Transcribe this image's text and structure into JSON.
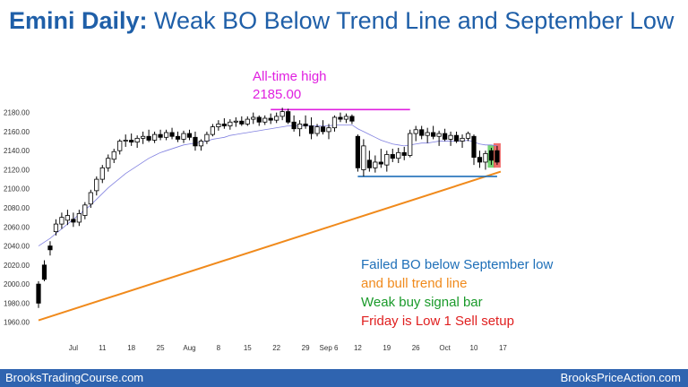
{
  "title": {
    "prefix": "Emini Daily:",
    "rest": " Weak BO Below Trend Line and September Low"
  },
  "footer": {
    "left": "BrooksTradingCourse.com",
    "right": "BrooksPriceAction.com"
  },
  "annotations": {
    "ath_label": "All-time high",
    "ath_value": "2185.00",
    "line1": "Failed BO below September low",
    "line2": "and bull trend line",
    "line3": "Weak buy signal bar",
    "line4": "Friday is Low 1 Sell setup"
  },
  "colors": {
    "title": "#1f5fa8",
    "footer": "#2f64b0",
    "ath": "#e020e0",
    "blue": "#1e6fb8",
    "orange": "#f08a1c",
    "green": "#1a9a2a",
    "red": "#e02020",
    "ma": "#8080e0",
    "signal_green": "#5ccc5c",
    "signal_red": "#ee5555"
  },
  "chart_data": {
    "type": "candlestick",
    "yticks": [
      "1960.00",
      "1980.00",
      "2000.00",
      "2020.00",
      "2040.00",
      "2060.00",
      "2080.00",
      "2100.00",
      "2120.00",
      "2140.00",
      "2160.00",
      "2180.00"
    ],
    "ylim": [
      1955,
      2190
    ],
    "xticks": [
      "Jul",
      "11",
      "18",
      "25",
      "Aug",
      "8",
      "15",
      "22",
      "29",
      "Sep 6",
      "12",
      "19",
      "26",
      "Oct",
      "10",
      "17"
    ],
    "xtick_index": [
      6,
      11,
      16,
      21,
      26,
      31,
      36,
      41,
      46,
      50,
      55,
      60,
      65,
      70,
      75,
      80
    ],
    "bars": [
      {
        "o": 2000,
        "h": 2003,
        "l": 1975,
        "c": 1980
      },
      {
        "o": 2020,
        "h": 2025,
        "l": 2003,
        "c": 2005
      },
      {
        "o": 2040,
        "h": 2045,
        "l": 2030,
        "c": 2036
      },
      {
        "o": 2055,
        "h": 2068,
        "l": 2051,
        "c": 2063
      },
      {
        "o": 2063,
        "h": 2075,
        "l": 2058,
        "c": 2070
      },
      {
        "o": 2067,
        "h": 2078,
        "l": 2062,
        "c": 2072
      },
      {
        "o": 2068,
        "h": 2075,
        "l": 2060,
        "c": 2065
      },
      {
        "o": 2065,
        "h": 2078,
        "l": 2061,
        "c": 2074
      },
      {
        "o": 2072,
        "h": 2086,
        "l": 2068,
        "c": 2083
      },
      {
        "o": 2084,
        "h": 2099,
        "l": 2080,
        "c": 2096
      },
      {
        "o": 2098,
        "h": 2113,
        "l": 2093,
        "c": 2110
      },
      {
        "o": 2110,
        "h": 2125,
        "l": 2106,
        "c": 2122
      },
      {
        "o": 2122,
        "h": 2136,
        "l": 2118,
        "c": 2132
      },
      {
        "o": 2131,
        "h": 2142,
        "l": 2127,
        "c": 2139
      },
      {
        "o": 2140,
        "h": 2152,
        "l": 2136,
        "c": 2150
      },
      {
        "o": 2150,
        "h": 2157,
        "l": 2144,
        "c": 2151
      },
      {
        "o": 2151,
        "h": 2158,
        "l": 2145,
        "c": 2149
      },
      {
        "o": 2149,
        "h": 2156,
        "l": 2143,
        "c": 2153
      },
      {
        "o": 2153,
        "h": 2160,
        "l": 2147,
        "c": 2155
      },
      {
        "o": 2155,
        "h": 2162,
        "l": 2149,
        "c": 2151
      },
      {
        "o": 2151,
        "h": 2160,
        "l": 2148,
        "c": 2157
      },
      {
        "o": 2157,
        "h": 2162,
        "l": 2151,
        "c": 2154
      },
      {
        "o": 2154,
        "h": 2162,
        "l": 2151,
        "c": 2159
      },
      {
        "o": 2159,
        "h": 2164,
        "l": 2152,
        "c": 2155
      },
      {
        "o": 2155,
        "h": 2160,
        "l": 2149,
        "c": 2152
      },
      {
        "o": 2152,
        "h": 2161,
        "l": 2148,
        "c": 2158
      },
      {
        "o": 2158,
        "h": 2162,
        "l": 2151,
        "c": 2154
      },
      {
        "o": 2154,
        "h": 2160,
        "l": 2140,
        "c": 2145
      },
      {
        "o": 2145,
        "h": 2152,
        "l": 2140,
        "c": 2150
      },
      {
        "o": 2150,
        "h": 2160,
        "l": 2147,
        "c": 2157
      },
      {
        "o": 2157,
        "h": 2168,
        "l": 2155,
        "c": 2165
      },
      {
        "o": 2165,
        "h": 2172,
        "l": 2161,
        "c": 2168
      },
      {
        "o": 2168,
        "h": 2174,
        "l": 2163,
        "c": 2166
      },
      {
        "o": 2166,
        "h": 2173,
        "l": 2162,
        "c": 2170
      },
      {
        "o": 2170,
        "h": 2175,
        "l": 2165,
        "c": 2171
      },
      {
        "o": 2171,
        "h": 2176,
        "l": 2166,
        "c": 2168
      },
      {
        "o": 2168,
        "h": 2176,
        "l": 2166,
        "c": 2173
      },
      {
        "o": 2173,
        "h": 2180,
        "l": 2168,
        "c": 2175
      },
      {
        "o": 2175,
        "h": 2177,
        "l": 2166,
        "c": 2170
      },
      {
        "o": 2170,
        "h": 2177,
        "l": 2167,
        "c": 2174
      },
      {
        "o": 2174,
        "h": 2179,
        "l": 2168,
        "c": 2172
      },
      {
        "o": 2172,
        "h": 2180,
        "l": 2169,
        "c": 2176
      },
      {
        "o": 2176,
        "h": 2185,
        "l": 2172,
        "c": 2181
      },
      {
        "o": 2181,
        "h": 2184,
        "l": 2168,
        "c": 2170
      },
      {
        "o": 2170,
        "h": 2177,
        "l": 2160,
        "c": 2163
      },
      {
        "o": 2163,
        "h": 2172,
        "l": 2155,
        "c": 2168
      },
      {
        "o": 2168,
        "h": 2177,
        "l": 2163,
        "c": 2166
      },
      {
        "o": 2166,
        "h": 2175,
        "l": 2152,
        "c": 2158
      },
      {
        "o": 2158,
        "h": 2168,
        "l": 2155,
        "c": 2165
      },
      {
        "o": 2165,
        "h": 2172,
        "l": 2157,
        "c": 2160
      },
      {
        "o": 2160,
        "h": 2168,
        "l": 2152,
        "c": 2164
      },
      {
        "o": 2164,
        "h": 2177,
        "l": 2160,
        "c": 2175
      },
      {
        "o": 2175,
        "h": 2180,
        "l": 2170,
        "c": 2173
      },
      {
        "o": 2173,
        "h": 2179,
        "l": 2169,
        "c": 2176
      },
      {
        "o": 2176,
        "h": 2178,
        "l": 2168,
        "c": 2171
      },
      {
        "o": 2155,
        "h": 2157,
        "l": 2118,
        "c": 2122
      },
      {
        "o": 2120,
        "h": 2152,
        "l": 2113,
        "c": 2145
      },
      {
        "o": 2130,
        "h": 2140,
        "l": 2118,
        "c": 2122
      },
      {
        "o": 2122,
        "h": 2135,
        "l": 2117,
        "c": 2128
      },
      {
        "o": 2128,
        "h": 2142,
        "l": 2122,
        "c": 2126
      },
      {
        "o": 2125,
        "h": 2140,
        "l": 2118,
        "c": 2136
      },
      {
        "o": 2136,
        "h": 2142,
        "l": 2128,
        "c": 2132
      },
      {
        "o": 2132,
        "h": 2143,
        "l": 2127,
        "c": 2138
      },
      {
        "o": 2138,
        "h": 2144,
        "l": 2130,
        "c": 2135
      },
      {
        "o": 2135,
        "h": 2162,
        "l": 2133,
        "c": 2158
      },
      {
        "o": 2158,
        "h": 2166,
        "l": 2150,
        "c": 2162
      },
      {
        "o": 2162,
        "h": 2166,
        "l": 2152,
        "c": 2156
      },
      {
        "o": 2156,
        "h": 2164,
        "l": 2148,
        "c": 2159
      },
      {
        "o": 2159,
        "h": 2166,
        "l": 2152,
        "c": 2155
      },
      {
        "o": 2155,
        "h": 2161,
        "l": 2145,
        "c": 2158
      },
      {
        "o": 2158,
        "h": 2163,
        "l": 2150,
        "c": 2152
      },
      {
        "o": 2152,
        "h": 2160,
        "l": 2145,
        "c": 2156
      },
      {
        "o": 2156,
        "h": 2160,
        "l": 2148,
        "c": 2150
      },
      {
        "o": 2150,
        "h": 2157,
        "l": 2143,
        "c": 2153
      },
      {
        "o": 2153,
        "h": 2160,
        "l": 2150,
        "c": 2158
      },
      {
        "o": 2155,
        "h": 2157,
        "l": 2125,
        "c": 2133
      },
      {
        "o": 2133,
        "h": 2140,
        "l": 2122,
        "c": 2128
      },
      {
        "o": 2128,
        "h": 2140,
        "l": 2120,
        "c": 2137
      },
      {
        "o": 2140,
        "h": 2143,
        "l": 2125,
        "c": 2130
      },
      {
        "o": 2140,
        "h": 2145,
        "l": 2125,
        "c": 2128
      }
    ],
    "ma": [
      2040,
      2044,
      2048,
      2053,
      2058,
      2063,
      2068,
      2073,
      2078,
      2083,
      2089,
      2095,
      2101,
      2106,
      2111,
      2116,
      2120,
      2124,
      2128,
      2132,
      2135,
      2138,
      2140,
      2142,
      2144,
      2146,
      2147,
      2148,
      2149,
      2150,
      2152,
      2153,
      2154,
      2156,
      2157,
      2158,
      2159,
      2160,
      2161,
      2162,
      2163,
      2164,
      2165,
      2166,
      2166,
      2166,
      2166,
      2166,
      2166,
      2166,
      2166,
      2167,
      2167,
      2167,
      2167,
      2163,
      2160,
      2157,
      2154,
      2151,
      2149,
      2147,
      2146,
      2145,
      2146,
      2147,
      2148,
      2148,
      2149,
      2150,
      2150,
      2150,
      2150,
      2150,
      2151,
      2149,
      2147,
      2146,
      2146,
      2145
    ],
    "ath": {
      "value": 2185,
      "from_index": 40,
      "to_index": 64
    },
    "sept_low": {
      "value": 2113,
      "from_index": 55,
      "to_index": 79
    },
    "trendline": {
      "from_index": 0,
      "from_value": 1962,
      "to_index": 79,
      "to_value": 2118
    },
    "signal_bars": [
      {
        "index": 78,
        "color": "green"
      },
      {
        "index": 79,
        "color": "red"
      }
    ]
  }
}
